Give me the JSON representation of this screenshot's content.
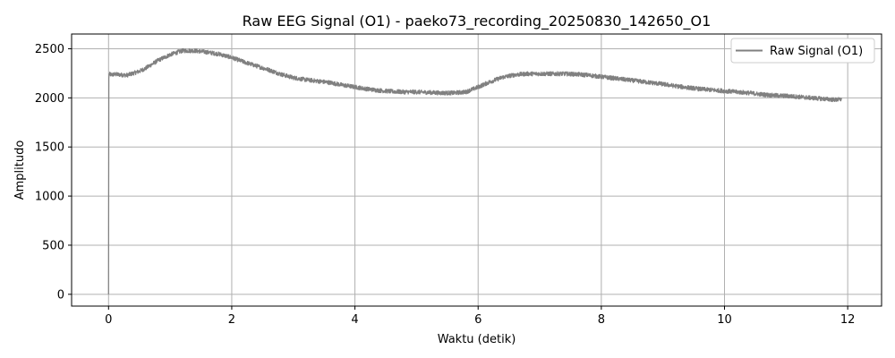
{
  "chart_data": {
    "type": "line",
    "title": "Raw EEG Signal (O1) - paeko73_recording_20250830_142650_O1",
    "xlabel": "Waktu (detik)",
    "ylabel": "Amplitudo",
    "xlim": [
      -0.6,
      12.55
    ],
    "ylim": [
      -120,
      2650
    ],
    "xticks": [
      0,
      2,
      4,
      6,
      8,
      10,
      12
    ],
    "xtick_labels": [
      "0",
      "2",
      "4",
      "6",
      "8",
      "10",
      "12"
    ],
    "yticks": [
      0,
      500,
      1000,
      1500,
      2000,
      2500
    ],
    "ytick_labels": [
      "0",
      "500",
      "1000",
      "1500",
      "2000",
      "2500"
    ],
    "grid": true,
    "legend": {
      "placement": "top-right",
      "entries": [
        "Raw Signal (O1)"
      ]
    },
    "series": [
      {
        "name": "Raw Signal (O1)",
        "color": "#808080",
        "noise_amplitude": 22,
        "x": [
          0.0,
          0.01,
          0.02,
          0.05,
          0.1,
          0.2,
          0.3,
          0.4,
          0.5,
          0.6,
          0.8,
          1.0,
          1.2,
          1.4,
          1.6,
          1.8,
          2.0,
          2.2,
          2.4,
          2.6,
          2.8,
          3.0,
          3.2,
          3.4,
          3.6,
          3.8,
          4.0,
          4.2,
          4.4,
          4.6,
          4.8,
          5.0,
          5.2,
          5.4,
          5.6,
          5.8,
          6.0,
          6.2,
          6.4,
          6.6,
          6.8,
          7.0,
          7.2,
          7.4,
          7.6,
          7.8,
          8.0,
          8.2,
          8.4,
          8.6,
          8.8,
          9.0,
          9.2,
          9.4,
          9.6,
          9.8,
          10.0,
          10.2,
          10.4,
          10.6,
          10.8,
          11.0,
          11.2,
          11.4,
          11.6,
          11.8,
          11.9
        ],
        "y": [
          0,
          2240,
          2240,
          2235,
          2240,
          2235,
          2230,
          2250,
          2270,
          2300,
          2380,
          2440,
          2480,
          2480,
          2465,
          2445,
          2410,
          2365,
          2325,
          2285,
          2240,
          2205,
          2185,
          2170,
          2155,
          2130,
          2110,
          2090,
          2075,
          2065,
          2060,
          2060,
          2055,
          2050,
          2050,
          2060,
          2110,
          2165,
          2210,
          2235,
          2245,
          2245,
          2245,
          2245,
          2240,
          2230,
          2215,
          2200,
          2185,
          2170,
          2155,
          2140,
          2120,
          2105,
          2090,
          2080,
          2070,
          2060,
          2050,
          2035,
          2025,
          2020,
          2010,
          2000,
          1990,
          1980,
          1985
        ]
      }
    ]
  }
}
